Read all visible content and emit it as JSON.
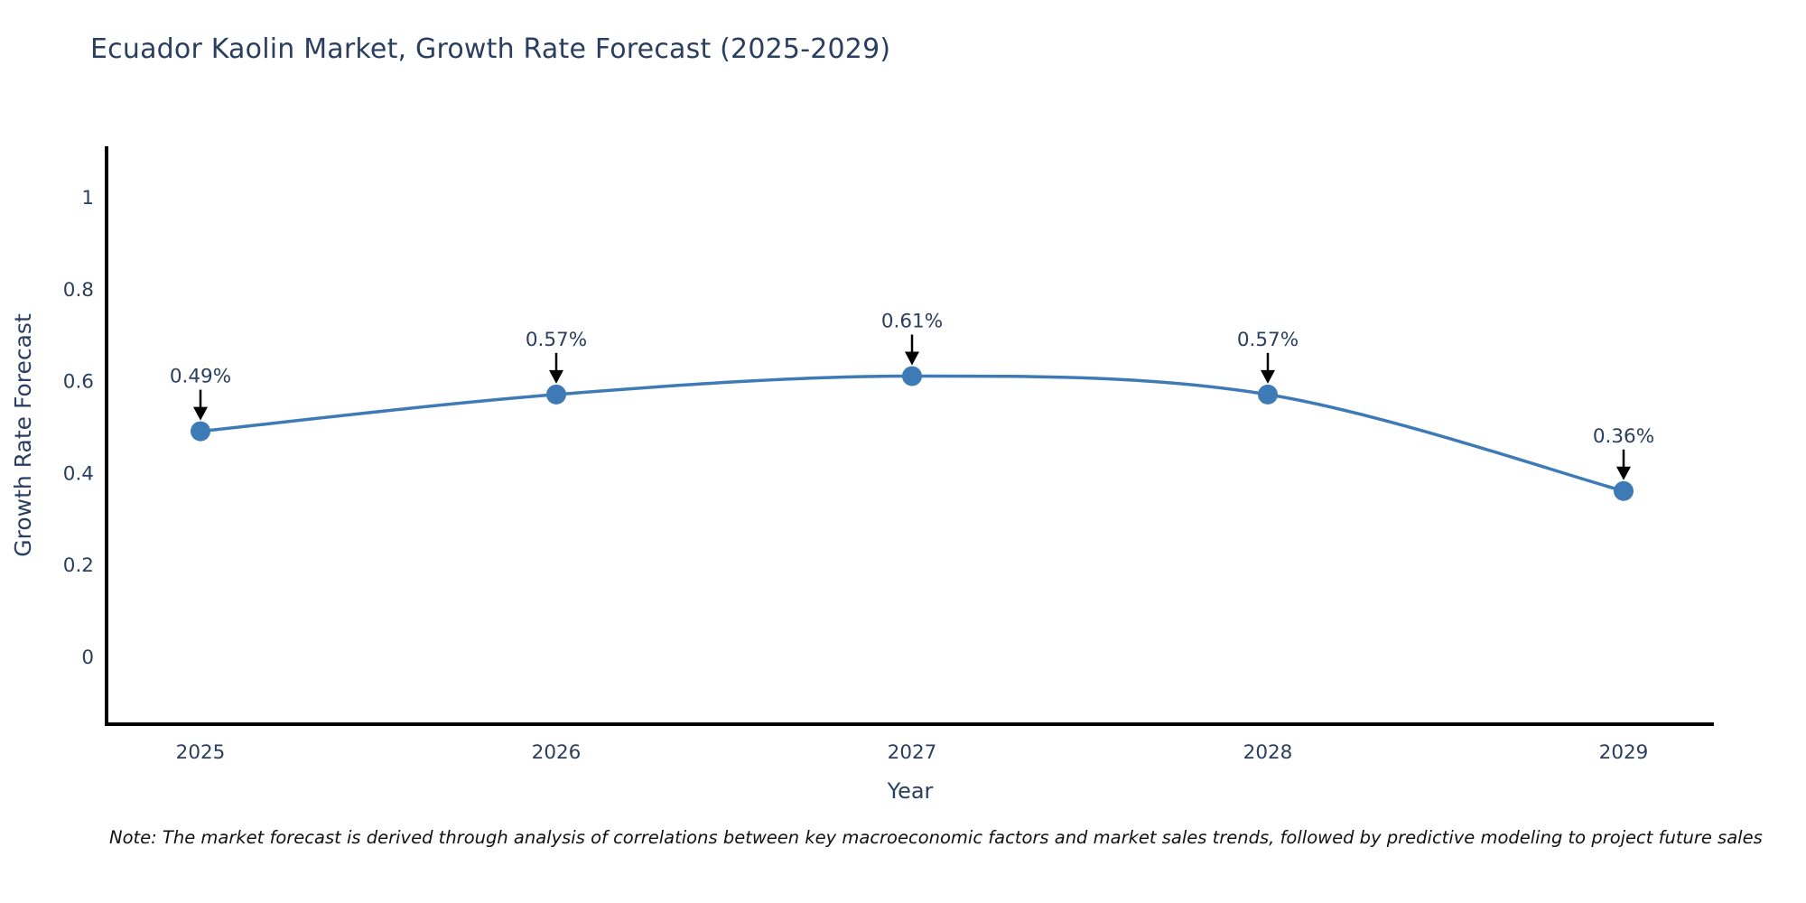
{
  "title": "Ecuador Kaolin Market, Growth Rate Forecast (2025-2029)",
  "note": "Note: The market forecast is derived through analysis of correlations between key macroeconomic factors and market sales trends, followed by predictive modeling to project future sales",
  "chart_data": {
    "type": "line",
    "title": "Ecuador Kaolin Market, Growth Rate Forecast (2025-2029)",
    "xlabel": "Year",
    "ylabel": "Growth Rate Forecast",
    "categories": [
      "2025",
      "2026",
      "2027",
      "2028",
      "2029"
    ],
    "values": [
      0.49,
      0.57,
      0.61,
      0.57,
      0.36
    ],
    "point_labels": [
      "0.49%",
      "0.57%",
      "0.61%",
      "0.57%",
      "0.36%"
    ],
    "yticks": [
      0,
      0.2,
      0.4,
      0.6,
      0.8,
      1
    ],
    "ytick_labels": [
      "0",
      "0.2",
      "0.4",
      "0.6",
      "0.8",
      "1"
    ],
    "ylim": [
      -0.15,
      1.11
    ],
    "grid": false,
    "legend": "none",
    "line_shape": "spline",
    "line_color": "#3d7ab6",
    "marker_color": "#3d7ab6",
    "axis_color": "#000000",
    "text_color": "#2a3f5f",
    "annotation_arrow_color": "#000000",
    "background_color": "#ffffff"
  }
}
